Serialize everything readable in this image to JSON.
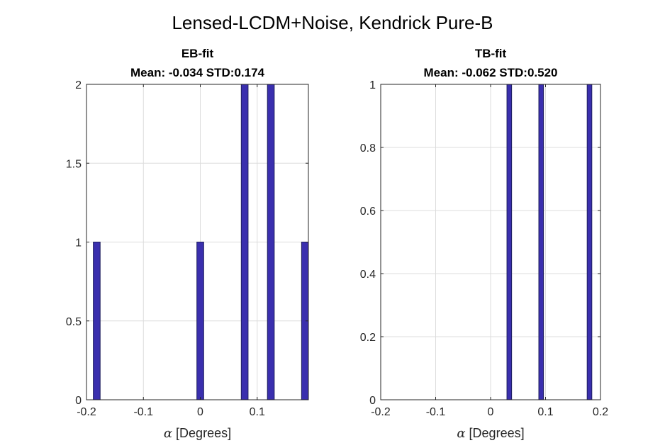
{
  "figure_title": "Lensed-LCDM+Noise, Kendrick Pure-B",
  "colors": {
    "bar_fill": "#3a2fae",
    "bar_edge": "#1f1f5e",
    "grid": "#dcdcdc",
    "axis": "#262626"
  },
  "chart_data": [
    {
      "type": "bar",
      "title": "EB-fit",
      "subtitle": "Mean: -0.034 STD:0.174",
      "xlabel_symbol": "α",
      "xlabel_text": "[Degrees]",
      "ylabel": "",
      "xlim": [
        -0.2,
        0.19
      ],
      "ylim": [
        0,
        2
      ],
      "xticks": [
        -0.2,
        -0.1,
        0,
        0.1
      ],
      "xtick_labels": [
        "-0.2",
        "-0.1",
        "0",
        "0.1"
      ],
      "yticks": [
        0,
        0.5,
        1,
        1.5,
        2
      ],
      "ytick_labels": [
        "0",
        "0.5",
        "1",
        "1.5",
        "2"
      ],
      "bin_width": 0.012,
      "bars": [
        {
          "x": -0.182,
          "value": 1
        },
        {
          "x": 0.0,
          "value": 1
        },
        {
          "x": 0.078,
          "value": 2
        },
        {
          "x": 0.124,
          "value": 2
        },
        {
          "x": 0.184,
          "value": 1
        }
      ],
      "grid": true
    },
    {
      "type": "bar",
      "title": "TB-fit",
      "subtitle": "Mean: -0.062 STD:0.520",
      "xlabel_symbol": "α",
      "xlabel_text": "[Degrees]",
      "ylabel": "",
      "xlim": [
        -0.2,
        0.2
      ],
      "ylim": [
        0,
        1
      ],
      "xticks": [
        -0.2,
        -0.1,
        0,
        0.1,
        0.2
      ],
      "xtick_labels": [
        "-0.2",
        "-0.1",
        "0",
        "0.1",
        "0.2"
      ],
      "yticks": [
        0,
        0.2,
        0.4,
        0.6,
        0.8,
        1
      ],
      "ytick_labels": [
        "0",
        "0.2",
        "0.4",
        "0.6",
        "0.8",
        "1"
      ],
      "bin_width": 0.0085,
      "bars": [
        {
          "x": 0.034,
          "value": 1
        },
        {
          "x": 0.092,
          "value": 1
        },
        {
          "x": 0.18,
          "value": 1
        }
      ],
      "grid": true
    }
  ]
}
